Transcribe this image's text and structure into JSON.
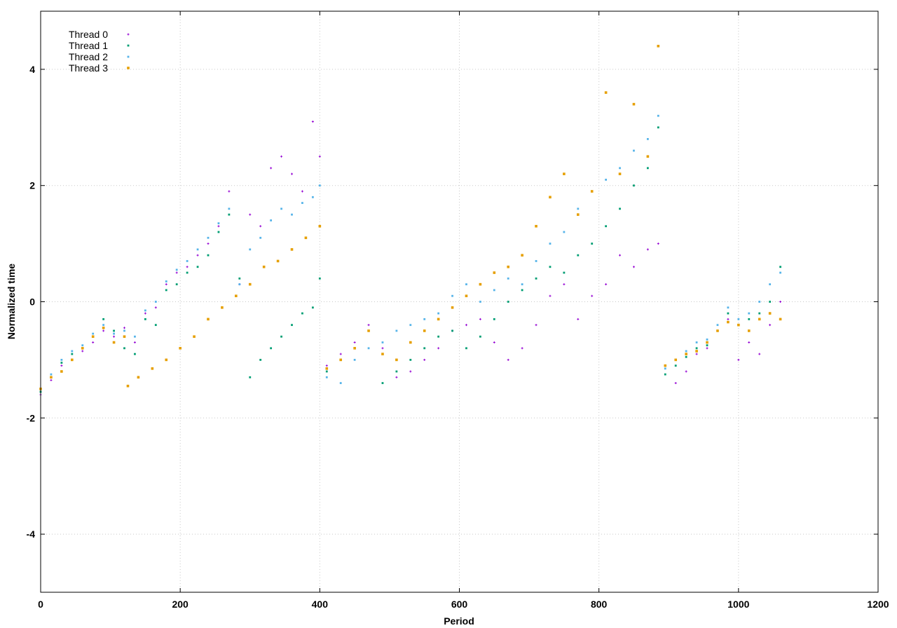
{
  "chart_data": {
    "type": "scatter",
    "title": "",
    "xlabel": "Period",
    "ylabel": "Normalized time",
    "xlim": [
      0,
      1200
    ],
    "ylim": [
      -5,
      5
    ],
    "x_ticks": [
      0,
      200,
      400,
      600,
      800,
      1000,
      1200
    ],
    "y_ticks": [
      -4,
      -2,
      0,
      2,
      4
    ],
    "grid": true,
    "legend_position": "top-left",
    "series": [
      {
        "name": "Thread 0",
        "color": "#9400d3",
        "marker": "plus",
        "points": [
          [
            0,
            -1.6
          ],
          [
            15,
            -1.35
          ],
          [
            30,
            -1.1
          ],
          [
            45,
            -1.0
          ],
          [
            60,
            -0.85
          ],
          [
            75,
            -0.7
          ],
          [
            90,
            -0.5
          ],
          [
            105,
            -0.6
          ],
          [
            120,
            -0.45
          ],
          [
            135,
            -0.7
          ],
          [
            150,
            -0.2
          ],
          [
            165,
            -0.1
          ],
          [
            180,
            0.3
          ],
          [
            195,
            0.5
          ],
          [
            210,
            0.6
          ],
          [
            225,
            0.8
          ],
          [
            240,
            1.0
          ],
          [
            255,
            1.3
          ],
          [
            270,
            1.9
          ],
          [
            285,
            0.3
          ],
          [
            300,
            1.5
          ],
          [
            315,
            1.3
          ],
          [
            330,
            2.3
          ],
          [
            345,
            2.5
          ],
          [
            360,
            2.2
          ],
          [
            375,
            1.9
          ],
          [
            390,
            3.1
          ],
          [
            400,
            2.5
          ],
          [
            410,
            -1.1
          ],
          [
            430,
            -0.9
          ],
          [
            450,
            -0.7
          ],
          [
            470,
            -0.4
          ],
          [
            490,
            -0.8
          ],
          [
            510,
            -1.3
          ],
          [
            530,
            -1.2
          ],
          [
            550,
            -1.0
          ],
          [
            570,
            -0.8
          ],
          [
            590,
            -0.5
          ],
          [
            610,
            -0.4
          ],
          [
            630,
            -0.3
          ],
          [
            650,
            -0.7
          ],
          [
            670,
            -1.0
          ],
          [
            690,
            -0.8
          ],
          [
            710,
            -0.4
          ],
          [
            730,
            0.1
          ],
          [
            750,
            0.3
          ],
          [
            770,
            -0.3
          ],
          [
            790,
            0.1
          ],
          [
            810,
            0.3
          ],
          [
            830,
            0.8
          ],
          [
            850,
            0.6
          ],
          [
            870,
            0.9
          ],
          [
            885,
            1.0
          ],
          [
            895,
            -1.1
          ],
          [
            910,
            -1.4
          ],
          [
            925,
            -1.2
          ],
          [
            940,
            -0.9
          ],
          [
            955,
            -0.8
          ],
          [
            970,
            -0.5
          ],
          [
            985,
            -0.3
          ],
          [
            1000,
            -1.0
          ],
          [
            1015,
            -0.7
          ],
          [
            1030,
            -0.9
          ],
          [
            1045,
            -0.4
          ],
          [
            1060,
            0.0
          ]
        ]
      },
      {
        "name": "Thread 1",
        "color": "#009e73",
        "marker": "square",
        "points": [
          [
            0,
            -1.55
          ],
          [
            15,
            -1.3
          ],
          [
            30,
            -1.05
          ],
          [
            45,
            -0.9
          ],
          [
            60,
            -0.8
          ],
          [
            75,
            -0.6
          ],
          [
            90,
            -0.3
          ],
          [
            105,
            -0.5
          ],
          [
            120,
            -0.8
          ],
          [
            135,
            -0.9
          ],
          [
            150,
            -0.3
          ],
          [
            165,
            -0.4
          ],
          [
            180,
            0.2
          ],
          [
            195,
            0.3
          ],
          [
            210,
            0.5
          ],
          [
            225,
            0.6
          ],
          [
            240,
            0.8
          ],
          [
            255,
            1.2
          ],
          [
            270,
            1.5
          ],
          [
            285,
            0.4
          ],
          [
            300,
            -1.3
          ],
          [
            315,
            -1.0
          ],
          [
            330,
            -0.8
          ],
          [
            345,
            -0.6
          ],
          [
            360,
            -0.4
          ],
          [
            375,
            -0.2
          ],
          [
            390,
            -0.1
          ],
          [
            400,
            0.4
          ],
          [
            410,
            -1.2
          ],
          [
            430,
            -1.0
          ],
          [
            450,
            -0.8
          ],
          [
            470,
            -0.5
          ],
          [
            490,
            -1.4
          ],
          [
            510,
            -1.2
          ],
          [
            530,
            -1.0
          ],
          [
            550,
            -0.8
          ],
          [
            570,
            -0.6
          ],
          [
            590,
            -0.5
          ],
          [
            610,
            -0.8
          ],
          [
            630,
            -0.6
          ],
          [
            650,
            -0.3
          ],
          [
            670,
            0.0
          ],
          [
            690,
            0.2
          ],
          [
            710,
            0.4
          ],
          [
            730,
            0.6
          ],
          [
            750,
            0.5
          ],
          [
            770,
            0.8
          ],
          [
            790,
            1.0
          ],
          [
            810,
            1.3
          ],
          [
            830,
            1.6
          ],
          [
            850,
            2.0
          ],
          [
            870,
            2.3
          ],
          [
            885,
            3.0
          ],
          [
            895,
            -1.25
          ],
          [
            910,
            -1.1
          ],
          [
            925,
            -0.95
          ],
          [
            940,
            -0.8
          ],
          [
            955,
            -0.75
          ],
          [
            970,
            -0.5
          ],
          [
            985,
            -0.2
          ],
          [
            1000,
            -0.4
          ],
          [
            1015,
            -0.3
          ],
          [
            1030,
            -0.2
          ],
          [
            1045,
            0.0
          ],
          [
            1060,
            0.6
          ]
        ]
      },
      {
        "name": "Thread 2",
        "color": "#56b4e9",
        "marker": "square",
        "points": [
          [
            0,
            -1.5
          ],
          [
            15,
            -1.25
          ],
          [
            30,
            -1.0
          ],
          [
            45,
            -0.85
          ],
          [
            60,
            -0.75
          ],
          [
            75,
            -0.55
          ],
          [
            90,
            -0.4
          ],
          [
            105,
            -0.55
          ],
          [
            120,
            -0.5
          ],
          [
            135,
            -0.6
          ],
          [
            150,
            -0.15
          ],
          [
            165,
            0.0
          ],
          [
            180,
            0.35
          ],
          [
            195,
            0.55
          ],
          [
            210,
            0.7
          ],
          [
            225,
            0.9
          ],
          [
            240,
            1.1
          ],
          [
            255,
            1.35
          ],
          [
            270,
            1.6
          ],
          [
            285,
            0.3
          ],
          [
            300,
            0.9
          ],
          [
            315,
            1.1
          ],
          [
            330,
            1.4
          ],
          [
            345,
            1.6
          ],
          [
            360,
            1.5
          ],
          [
            375,
            1.7
          ],
          [
            390,
            1.8
          ],
          [
            400,
            2.0
          ],
          [
            410,
            -1.3
          ],
          [
            430,
            -1.4
          ],
          [
            450,
            -1.0
          ],
          [
            470,
            -0.8
          ],
          [
            490,
            -0.7
          ],
          [
            510,
            -0.5
          ],
          [
            530,
            -0.4
          ],
          [
            550,
            -0.3
          ],
          [
            570,
            -0.2
          ],
          [
            590,
            0.1
          ],
          [
            610,
            0.3
          ],
          [
            630,
            0.0
          ],
          [
            650,
            0.2
          ],
          [
            670,
            0.4
          ],
          [
            690,
            0.3
          ],
          [
            710,
            0.7
          ],
          [
            730,
            1.0
          ],
          [
            750,
            1.2
          ],
          [
            770,
            1.6
          ],
          [
            790,
            1.9
          ],
          [
            810,
            2.1
          ],
          [
            830,
            2.3
          ],
          [
            850,
            2.6
          ],
          [
            870,
            2.8
          ],
          [
            885,
            3.2
          ],
          [
            895,
            -1.15
          ],
          [
            910,
            -1.0
          ],
          [
            925,
            -0.85
          ],
          [
            940,
            -0.7
          ],
          [
            955,
            -0.65
          ],
          [
            970,
            -0.4
          ],
          [
            985,
            -0.1
          ],
          [
            1000,
            -0.3
          ],
          [
            1015,
            -0.2
          ],
          [
            1030,
            0.0
          ],
          [
            1045,
            0.3
          ],
          [
            1060,
            0.5
          ]
        ]
      },
      {
        "name": "Thread 3",
        "color": "#e69f00",
        "marker": "square",
        "points": [
          [
            0,
            -1.5
          ],
          [
            15,
            -1.3
          ],
          [
            30,
            -1.2
          ],
          [
            45,
            -1.0
          ],
          [
            60,
            -0.8
          ],
          [
            75,
            -0.6
          ],
          [
            90,
            -0.45
          ],
          [
            105,
            -0.7
          ],
          [
            120,
            -0.6
          ],
          [
            125,
            -1.45
          ],
          [
            140,
            -1.3
          ],
          [
            160,
            -1.15
          ],
          [
            180,
            -1.0
          ],
          [
            200,
            -0.8
          ],
          [
            220,
            -0.6
          ],
          [
            240,
            -0.3
          ],
          [
            260,
            -0.1
          ],
          [
            280,
            0.1
          ],
          [
            300,
            0.3
          ],
          [
            320,
            0.6
          ],
          [
            340,
            0.7
          ],
          [
            360,
            0.9
          ],
          [
            380,
            1.1
          ],
          [
            400,
            1.3
          ],
          [
            410,
            -1.15
          ],
          [
            430,
            -1.0
          ],
          [
            450,
            -0.8
          ],
          [
            470,
            -0.5
          ],
          [
            490,
            -0.9
          ],
          [
            510,
            -1.0
          ],
          [
            530,
            -0.7
          ],
          [
            550,
            -0.5
          ],
          [
            570,
            -0.3
          ],
          [
            590,
            -0.1
          ],
          [
            610,
            0.1
          ],
          [
            630,
            0.3
          ],
          [
            650,
            0.5
          ],
          [
            670,
            0.6
          ],
          [
            690,
            0.8
          ],
          [
            710,
            1.3
          ],
          [
            730,
            1.8
          ],
          [
            750,
            2.2
          ],
          [
            770,
            1.5
          ],
          [
            790,
            1.9
          ],
          [
            810,
            3.6
          ],
          [
            830,
            2.2
          ],
          [
            850,
            3.4
          ],
          [
            870,
            2.5
          ],
          [
            885,
            4.4
          ],
          [
            895,
            -1.1
          ],
          [
            910,
            -1.0
          ],
          [
            925,
            -0.9
          ],
          [
            940,
            -0.85
          ],
          [
            955,
            -0.7
          ],
          [
            970,
            -0.5
          ],
          [
            985,
            -0.35
          ],
          [
            1000,
            -0.4
          ],
          [
            1015,
            -0.5
          ],
          [
            1030,
            -0.3
          ],
          [
            1045,
            -0.2
          ],
          [
            1060,
            -0.3
          ]
        ]
      }
    ]
  }
}
